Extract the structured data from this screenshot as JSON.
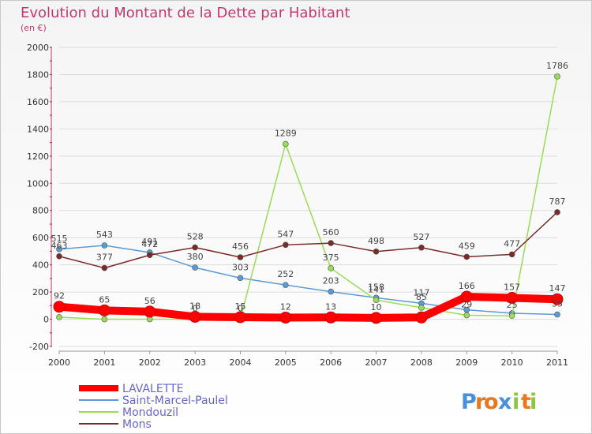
{
  "chart_data": {
    "type": "line",
    "title": "Evolution du Montant de la Dette par Habitant",
    "subtitle": "(en €)",
    "x": [
      "2000",
      "2001",
      "2002",
      "2003",
      "2004",
      "2005",
      "2006",
      "2007",
      "2008",
      "2009",
      "2010",
      "2011"
    ],
    "ylim": [
      -200,
      2000
    ],
    "yticks": [
      -200,
      0,
      200,
      400,
      600,
      800,
      1000,
      1200,
      1400,
      1600,
      1800,
      2000
    ],
    "grid": "horizontal",
    "legend_position": "bottom-left",
    "series": [
      {
        "name": "LAVALETTE",
        "color": "#ff0000",
        "values": [
          92,
          65,
          56,
          18,
          15,
          12,
          13,
          10,
          13,
          166,
          157,
          147
        ],
        "labels": [
          "92",
          "65",
          "56",
          "18",
          "15",
          "12",
          "13",
          "10",
          "",
          "166",
          "157",
          "147"
        ]
      },
      {
        "name": "Saint-Marcel-Paulel",
        "color": "#5b9bd5",
        "values": [
          515,
          543,
          491,
          380,
          303,
          252,
          203,
          158,
          117,
          69,
          44,
          35
        ],
        "labels": [
          "515",
          "543",
          "491",
          "380",
          "303",
          "252",
          "203",
          "158",
          "117",
          "",
          "",
          "35"
        ]
      },
      {
        "name": "Mondouzil",
        "color": "#99dd55",
        "values": [
          15,
          0,
          0,
          0,
          0,
          1289,
          375,
          141,
          85,
          29,
          25,
          1786
        ],
        "labels": [
          "",
          "",
          "",
          "0",
          "0",
          "1289",
          "375",
          "141",
          "85",
          "29",
          "25",
          "1786"
        ]
      },
      {
        "name": "Mons",
        "color": "#7b2a2a",
        "values": [
          463,
          377,
          472,
          528,
          456,
          547,
          560,
          498,
          527,
          459,
          477,
          787
        ],
        "labels": [
          "463",
          "377",
          "472",
          "528",
          "456",
          "547",
          "560",
          "498",
          "527",
          "459",
          "477",
          "787"
        ]
      }
    ]
  },
  "brand": {
    "letters": [
      "P",
      "r",
      "o",
      "x",
      "i",
      "t",
      "i"
    ],
    "colors": [
      "#4a90d9",
      "#e87722",
      "#e87722",
      "#4a90d9",
      "#8cc63f",
      "#e87722",
      "#8cc63f"
    ]
  }
}
